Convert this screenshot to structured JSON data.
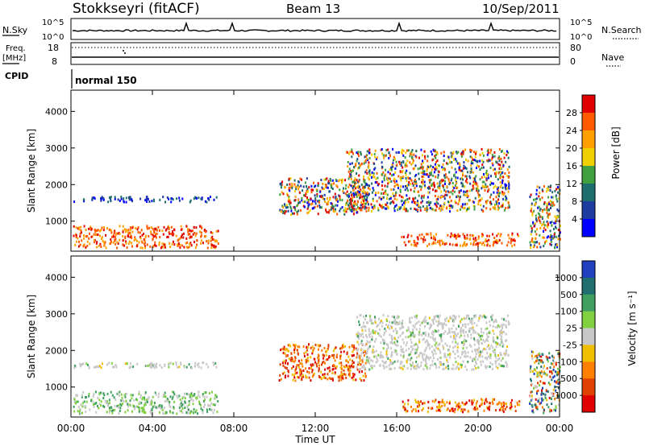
{
  "header": {
    "station": "Stokkseyri (fitACF)",
    "beam": "Beam 13",
    "date": "10/Sep/2011"
  },
  "top_panels": {
    "nsky_label": "N.Sky",
    "nsky_ticks": [
      "10^5",
      "10^0"
    ],
    "nsearch_label": "N.Search",
    "nsearch_ticks": [
      "10^5",
      "10^0"
    ],
    "freq_label": "Freq.",
    "freq_unit": "[MHz]",
    "freq_ticks": [
      "18",
      "8"
    ],
    "nave_label": "Nave",
    "nave_ticks": [
      "80",
      "0"
    ],
    "cpid_label": "CPID",
    "cpid_value": "normal 150"
  },
  "chart_data": [
    {
      "type": "heatmap",
      "name": "power",
      "ylabel": "Slant Range [km]",
      "yticks": [
        "1000",
        "2000",
        "3000",
        "4000"
      ],
      "ylim": [
        180,
        4580
      ],
      "xlim": [
        0,
        24
      ],
      "colorbar_label": "Power [dB]",
      "colorbar_ticks": [
        "28",
        "24",
        "20",
        "16",
        "12",
        "8",
        "4"
      ],
      "colors": [
        "#e00000",
        "#ff5a00",
        "#ffa000",
        "#f0d000",
        "#40a040",
        "#1e6e6e",
        "#1e3ca0",
        "#0000ff"
      ],
      "regions": [
        {
          "t0": 0.1,
          "t1": 7.2,
          "r0": 300,
          "r1": 900,
          "v": "high"
        },
        {
          "t0": 0.1,
          "t1": 7.2,
          "r0": 1550,
          "r1": 1700,
          "v": "low"
        },
        {
          "t0": 10.2,
          "t1": 14.5,
          "r0": 1200,
          "r1": 2200,
          "v": "mid"
        },
        {
          "t0": 13.5,
          "t1": 21.5,
          "r0": 1300,
          "r1": 3000,
          "v": "mid"
        },
        {
          "t0": 16.2,
          "t1": 22.0,
          "r0": 350,
          "r1": 700,
          "v": "high"
        },
        {
          "t0": 22.5,
          "t1": 24.0,
          "r0": 300,
          "r1": 2000,
          "v": "mid"
        }
      ]
    },
    {
      "type": "heatmap",
      "name": "velocity",
      "ylabel": "Slant Range [km]",
      "yticks": [
        "1000",
        "2000",
        "3000",
        "4000"
      ],
      "ylim": [
        180,
        4580
      ],
      "xlim": [
        0,
        24
      ],
      "xticks": [
        "00:00",
        "04:00",
        "08:00",
        "12:00",
        "16:00",
        "20:00",
        "00:00"
      ],
      "xlabel": "Time UT",
      "colorbar_label": "Velocity [m s⁻¹]",
      "colorbar_ticks": [
        "1000",
        "500",
        "100",
        "25",
        "-25",
        "-100",
        "-500",
        "-1000"
      ],
      "colors": [
        "#2040c0",
        "#206e6e",
        "#40a060",
        "#80d040",
        "#c8c8c8",
        "#f0c000",
        "#ff8000",
        "#e04000",
        "#e00000"
      ],
      "regions": [
        {
          "t0": 0.1,
          "t1": 7.2,
          "r0": 300,
          "r1": 900,
          "v": "positive"
        },
        {
          "t0": 0.1,
          "t1": 7.2,
          "r0": 1550,
          "r1": 1700,
          "v": "near-zero"
        },
        {
          "t0": 10.2,
          "t1": 14.5,
          "r0": 1200,
          "r1": 2200,
          "v": "negative"
        },
        {
          "t0": 14.0,
          "t1": 21.5,
          "r0": 1500,
          "r1": 3000,
          "v": "near-zero"
        },
        {
          "t0": 16.2,
          "t1": 22.0,
          "r0": 350,
          "r1": 700,
          "v": "negative"
        },
        {
          "t0": 22.5,
          "t1": 24.0,
          "r0": 300,
          "r1": 2000,
          "v": "mixed"
        }
      ]
    }
  ]
}
